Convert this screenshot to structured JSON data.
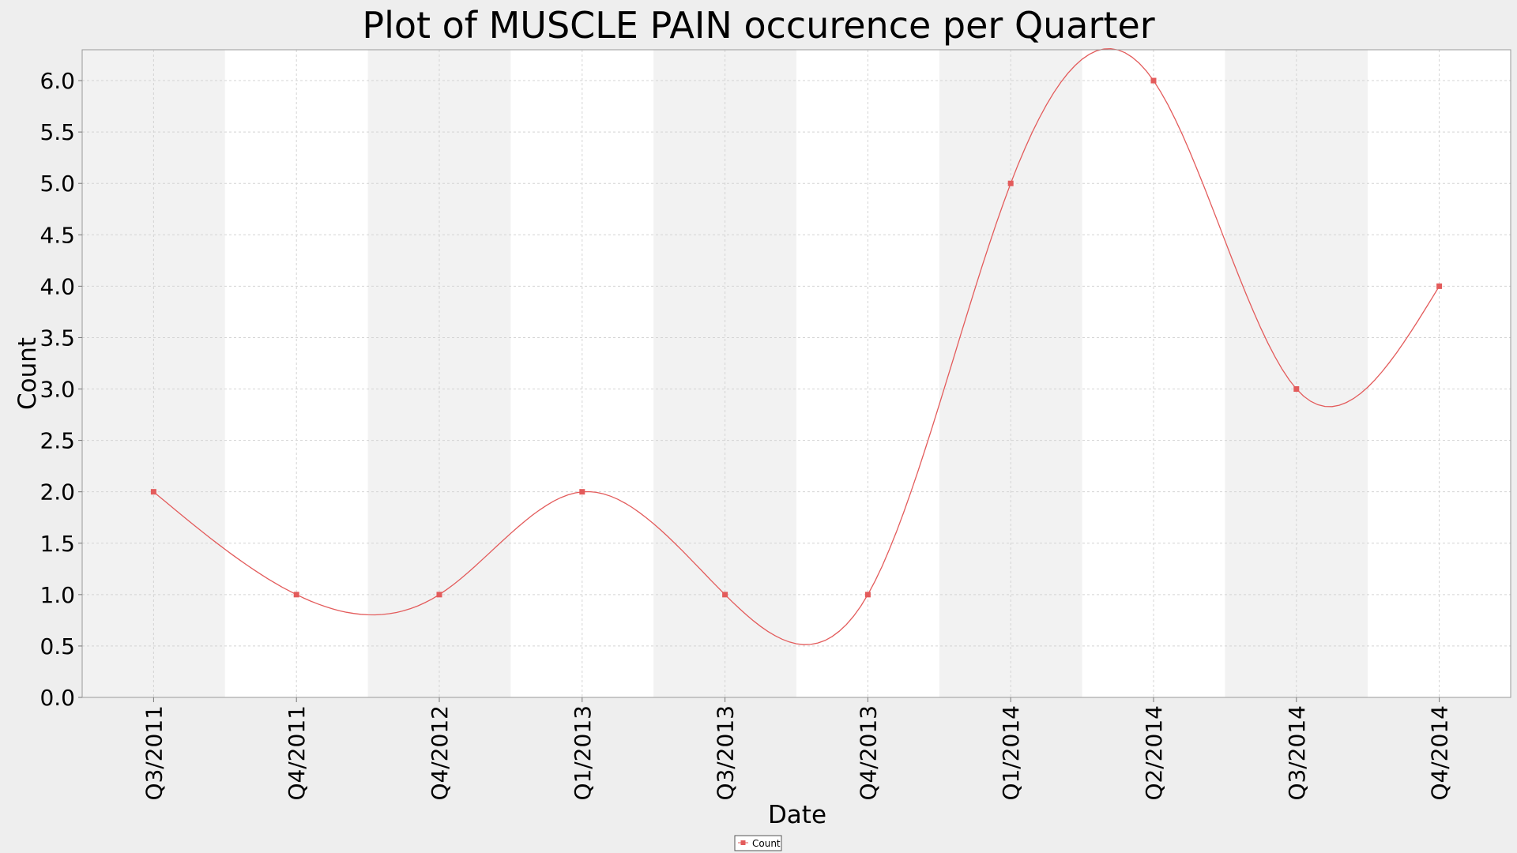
{
  "chart_data": {
    "type": "line",
    "title": "Plot of MUSCLE PAIN occurence per Quarter",
    "xlabel": "Date",
    "ylabel": "Count",
    "categories": [
      "Q3/2011",
      "Q4/2011",
      "Q4/2012",
      "Q1/2013",
      "Q3/2013",
      "Q4/2013",
      "Q1/2014",
      "Q2/2014",
      "Q3/2014",
      "Q4/2014"
    ],
    "series": [
      {
        "name": "Count",
        "values": [
          2,
          1,
          1,
          2,
          1,
          1,
          5,
          6,
          3,
          4
        ]
      }
    ],
    "yticks": [
      "0.0",
      "0.5",
      "1.0",
      "1.5",
      "2.0",
      "2.5",
      "3.0",
      "3.5",
      "4.0",
      "4.5",
      "5.0",
      "5.5",
      "6.0"
    ],
    "ylim": [
      0,
      6.3
    ],
    "grid": true,
    "interpolation": "smooth-spline",
    "band_colors": [
      "#f2f2f2",
      "#ffffff"
    ],
    "line_color": "#e35b5b",
    "legend_position": "bottom-center"
  }
}
